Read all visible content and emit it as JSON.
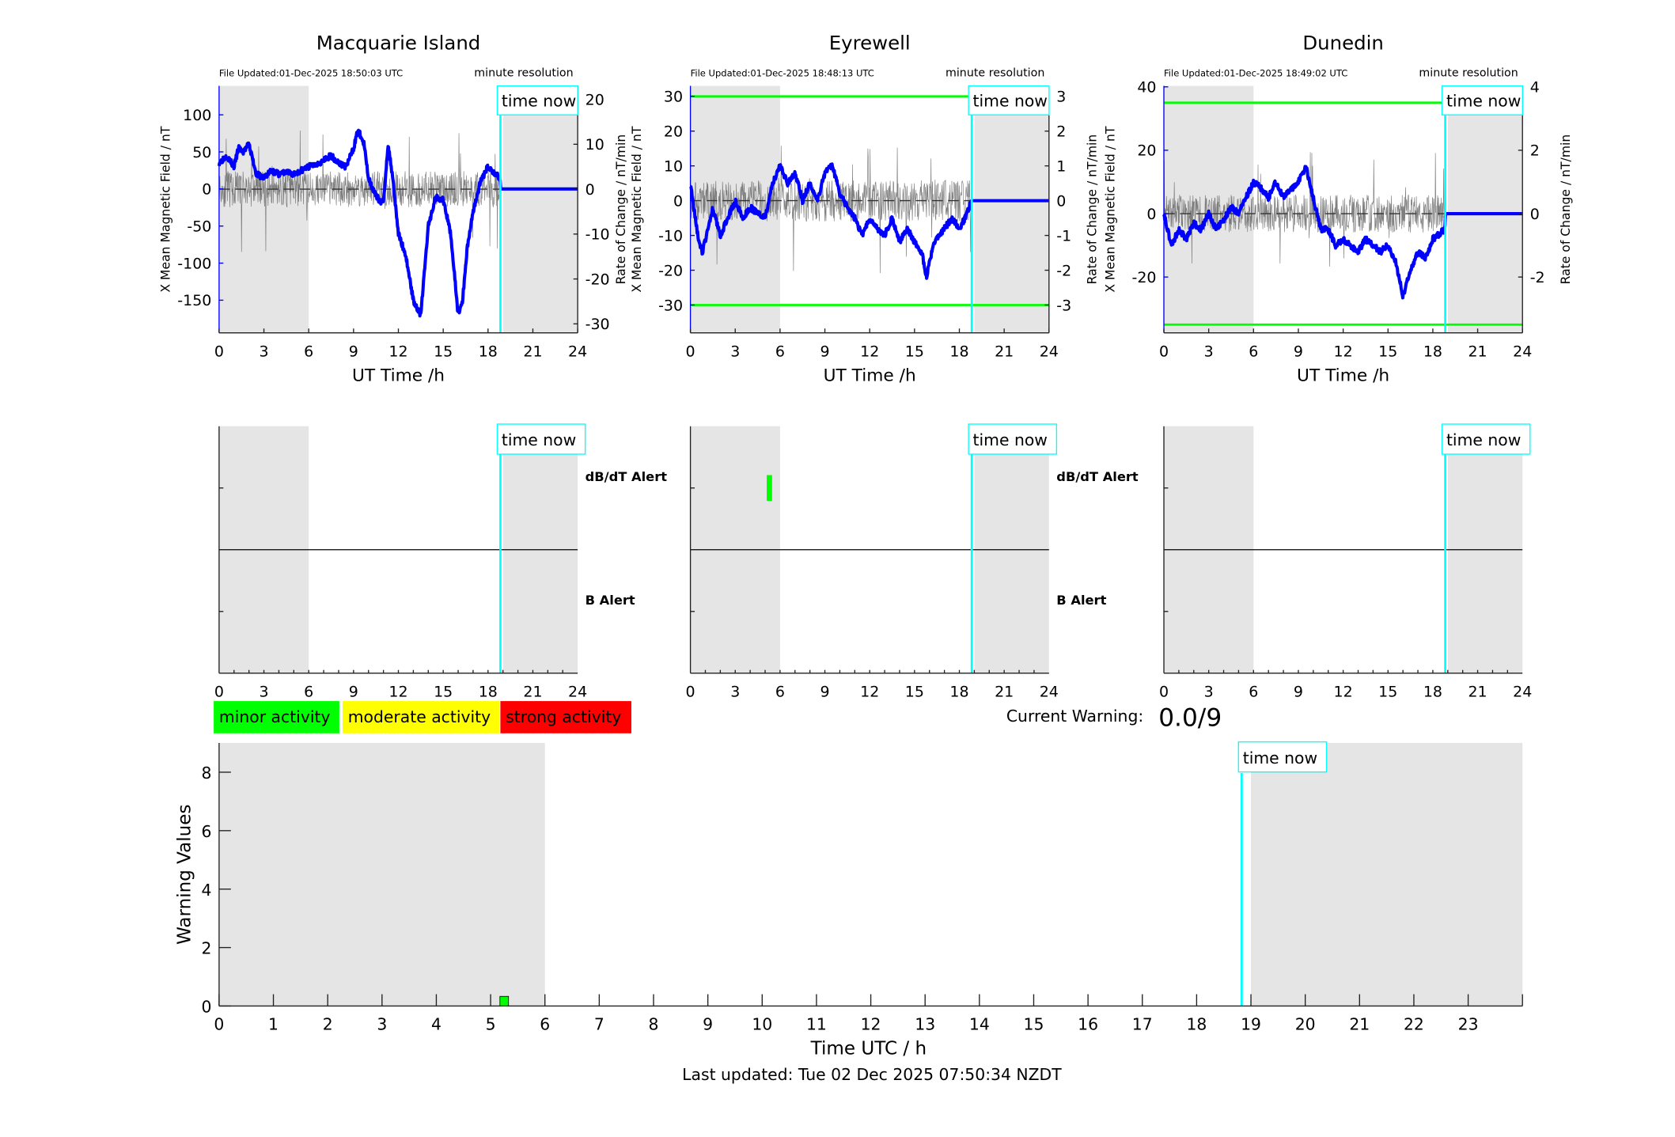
{
  "legend": {
    "items": [
      {
        "label": "minor activity",
        "color": "#00ff00"
      },
      {
        "label": "moderate activity",
        "color": "#ffff00"
      },
      {
        "label": "strong activity",
        "color": "#ff0000"
      }
    ]
  },
  "current_warning": {
    "label": "Current Warning:",
    "value": "0.0/9"
  },
  "footer": {
    "last_updated": "Last updated: Tue 02 Dec 2025 07:50:34 NZDT"
  },
  "colors": {
    "shade": "#e5e5e5",
    "field": "#0000ff",
    "time_now": "#00ffff",
    "threshold": "#00ff00",
    "rate": "#555555"
  },
  "chart_data": [
    {
      "type": "line",
      "role": "magnetometer",
      "title": "Macquarie Island",
      "file_updated": "File Updated:01-Dec-2025 18:50:03 UTC",
      "annotation": "minute resolution",
      "time_now_label": "time now",
      "time_now_hour": 18.83,
      "xlabel": "UT Time /h",
      "ylabel": "X Mean Magnetic Field / nT",
      "ylabel_right": "Rate of Change / nT/min",
      "xlim": [
        0,
        24
      ],
      "xticks": [
        0,
        3,
        6,
        9,
        12,
        15,
        18,
        21,
        24
      ],
      "ylim": [
        -194,
        139
      ],
      "yticks": [
        -150,
        -100,
        -50,
        0,
        50,
        100
      ],
      "ylim_right": [
        -32,
        23
      ],
      "yticks_right": [
        -30,
        -20,
        -10,
        0,
        10,
        20
      ],
      "shaded_hours": [
        [
          0,
          6
        ],
        [
          19,
          24
        ]
      ],
      "thresholds": [],
      "rate_amplitude": 4,
      "series": [
        {
          "name": "X Mean Magnetic Field",
          "x": [
            0,
            0.5,
            1,
            1.3,
            1.6,
            2,
            2.5,
            3,
            3.5,
            4,
            4.5,
            5,
            5.5,
            6,
            7,
            7.5,
            8,
            8.5,
            9,
            9.3,
            9.7,
            10,
            10.5,
            11,
            11.3,
            11.6,
            12,
            12.5,
            13,
            13.5,
            14,
            14.5,
            15,
            15.5,
            16,
            16.3,
            16.6,
            17,
            17.5,
            18,
            18.5,
            18.8,
            18.85,
            24
          ],
          "y": [
            35,
            45,
            30,
            55,
            50,
            60,
            20,
            15,
            25,
            20,
            22,
            20,
            25,
            30,
            38,
            45,
            35,
            30,
            55,
            80,
            60,
            15,
            -10,
            -20,
            60,
            20,
            -60,
            -90,
            -150,
            -170,
            -50,
            -10,
            -15,
            -60,
            -170,
            -150,
            -80,
            -30,
            10,
            30,
            20,
            15,
            0,
            0
          ]
        }
      ]
    },
    {
      "type": "line",
      "role": "magnetometer",
      "title": "Eyrewell",
      "file_updated": "File Updated:01-Dec-2025 18:48:13 UTC",
      "annotation": "minute resolution",
      "time_now_label": "time now",
      "time_now_hour": 18.83,
      "xlabel": "UT Time /h",
      "ylabel": "X Mean Magnetic Field / nT",
      "ylabel_right": "Rate of Change / nT/min",
      "xlim": [
        0,
        24
      ],
      "xticks": [
        0,
        3,
        6,
        9,
        12,
        15,
        18,
        21,
        24
      ],
      "ylim": [
        -38,
        33
      ],
      "yticks": [
        -30,
        -20,
        -10,
        0,
        10,
        20,
        30
      ],
      "ylim_right": [
        -3.8,
        3.3
      ],
      "yticks_right": [
        -3,
        -2,
        -1,
        0,
        1,
        2,
        3
      ],
      "shaded_hours": [
        [
          0,
          6
        ],
        [
          19,
          24
        ]
      ],
      "thresholds": [
        30,
        -30
      ],
      "rate_amplitude": 0.6,
      "series": [
        {
          "name": "X Mean Magnetic Field",
          "x": [
            0,
            0.5,
            0.8,
            1.5,
            2,
            2.5,
            3,
            3.5,
            4,
            5,
            5.5,
            6,
            6.5,
            7,
            7.5,
            8,
            8.5,
            9,
            9.5,
            10,
            10.5,
            11,
            11.5,
            12,
            12.5,
            13,
            13.5,
            14,
            14.5,
            15,
            15.5,
            15.8,
            16.3,
            17,
            17.5,
            18,
            18.5,
            18.8,
            24
          ],
          "y": [
            5,
            -10,
            -15,
            -2,
            -10,
            -5,
            0,
            -5,
            -2,
            -5,
            5,
            10,
            5,
            8,
            0,
            5,
            0,
            8,
            10,
            2,
            -2,
            -5,
            -10,
            -5,
            -8,
            -10,
            -5,
            -12,
            -8,
            -12,
            -15,
            -22,
            -12,
            -8,
            -5,
            -8,
            -4,
            0,
            0
          ]
        }
      ]
    },
    {
      "type": "line",
      "role": "magnetometer",
      "title": "Dunedin",
      "file_updated": "File Updated:01-Dec-2025 18:49:02 UTC",
      "annotation": "minute resolution",
      "time_now_label": "time now",
      "time_now_hour": 18.83,
      "xlabel": "UT Time /h",
      "ylabel": "X Mean Magnetic Field / nT",
      "ylabel_right": "Rate of Change / nT/min",
      "xlim": [
        0,
        24
      ],
      "xticks": [
        0,
        3,
        6,
        9,
        12,
        15,
        18,
        21,
        24
      ],
      "ylim": [
        -37.6,
        40.3
      ],
      "yticks": [
        -20,
        0,
        20,
        40
      ],
      "ylim_right": [
        -3.76,
        4.03
      ],
      "yticks_right": [
        -2,
        0,
        2,
        4
      ],
      "shaded_hours": [
        [
          0,
          6
        ],
        [
          19,
          24
        ]
      ],
      "thresholds": [
        35,
        -35
      ],
      "rate_amplitude": 0.6,
      "series": [
        {
          "name": "X Mean Magnetic Field",
          "x": [
            0,
            0.5,
            1,
            1.5,
            2,
            2.5,
            3,
            3.5,
            4,
            4.5,
            5,
            5.5,
            6,
            6.5,
            7,
            7.5,
            8,
            9,
            9.5,
            10,
            10.5,
            11,
            11.5,
            12,
            13,
            13.5,
            14,
            14.5,
            15,
            15.5,
            16,
            16.5,
            17,
            17.5,
            18,
            18.8,
            18.85,
            24
          ],
          "y": [
            0,
            -10,
            -5,
            -8,
            -3,
            -5,
            0,
            -5,
            -2,
            2,
            0,
            5,
            10,
            8,
            5,
            10,
            5,
            10,
            15,
            5,
            -5,
            -5,
            -10,
            -8,
            -12,
            -8,
            -10,
            -12,
            -10,
            -15,
            -26,
            -18,
            -12,
            -14,
            -8,
            -5,
            0,
            0
          ]
        }
      ]
    },
    {
      "type": "bar",
      "role": "alerts",
      "station": "Macquarie Island",
      "time_now_label": "time now",
      "time_now_hour": 18.83,
      "xlim": [
        0,
        24
      ],
      "xticks": [
        0,
        3,
        6,
        9,
        12,
        15,
        18,
        21,
        24
      ],
      "shaded_hours": [
        [
          0,
          6
        ],
        [
          19,
          24
        ]
      ],
      "row_labels": {
        "top": "dB/dT Alert",
        "bottom": "B Alert"
      },
      "alerts": []
    },
    {
      "type": "bar",
      "role": "alerts",
      "station": "Eyrewell",
      "time_now_label": "time now",
      "time_now_hour": 18.83,
      "xlim": [
        0,
        24
      ],
      "xticks": [
        0,
        3,
        6,
        9,
        12,
        15,
        18,
        21,
        24
      ],
      "shaded_hours": [
        [
          0,
          6
        ],
        [
          19,
          24
        ]
      ],
      "row_labels": {
        "top": "dB/dT Alert",
        "bottom": "B Alert"
      },
      "alerts": [
        {
          "row": "dB/dT",
          "hour": 5.25,
          "level": "minor"
        }
      ]
    },
    {
      "type": "bar",
      "role": "alerts",
      "station": "Dunedin",
      "time_now_label": "time now",
      "time_now_hour": 18.83,
      "xlim": [
        0,
        24
      ],
      "xticks": [
        0,
        3,
        6,
        9,
        12,
        15,
        18,
        21,
        24
      ],
      "shaded_hours": [
        [
          0,
          6
        ],
        [
          19,
          24
        ]
      ],
      "row_labels": null,
      "alerts": []
    },
    {
      "type": "bar",
      "role": "warning",
      "xlabel": "Time UTC / h",
      "ylabel": "Warning Values",
      "time_now_label": "time now",
      "time_now_hour": 18.83,
      "xlim": [
        0,
        24
      ],
      "xticks": [
        0,
        1,
        2,
        3,
        4,
        5,
        6,
        7,
        8,
        9,
        10,
        11,
        12,
        13,
        14,
        15,
        16,
        17,
        18,
        19,
        20,
        21,
        22,
        23
      ],
      "ylim": [
        0,
        9
      ],
      "yticks": [
        0,
        2,
        4,
        6,
        8
      ],
      "shaded_hours": [
        [
          0,
          6
        ],
        [
          19,
          24
        ]
      ],
      "bars": [
        {
          "hour": 5.25,
          "value": 0.33,
          "level": "minor"
        }
      ]
    }
  ]
}
